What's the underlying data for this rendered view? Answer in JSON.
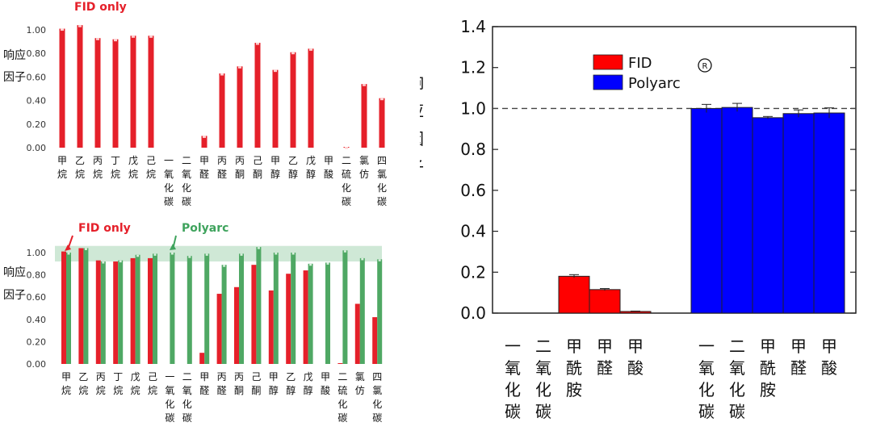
{
  "chart_data": [
    {
      "type": "bar",
      "ylabel": "响应因子",
      "annotation": "FID only",
      "ylim": [
        0,
        1.1
      ],
      "yticks": [
        "0.00",
        "0.20",
        "0.40",
        "0.60",
        "0.80",
        "1.00"
      ],
      "categories": [
        "甲烷",
        "乙烷",
        "丙烷",
        "丁烷",
        "戊烷",
        "己烷",
        "一氧化碳",
        "二氧化碳",
        "甲醛",
        "丙醛",
        "丙酮",
        "己酮",
        "甲醇",
        "乙醇",
        "戊醇",
        "甲酸",
        "二硫化碳",
        "氯仿",
        "四氯化碳"
      ],
      "series": [
        {
          "name": "FID",
          "color": "#e5202a",
          "values": [
            1.01,
            1.04,
            0.93,
            0.92,
            0.95,
            0.95,
            0.0,
            0.0,
            0.1,
            0.63,
            0.69,
            0.89,
            0.66,
            0.81,
            0.84,
            0.0,
            0.005,
            0.54,
            0.42
          ]
        }
      ]
    },
    {
      "type": "bar",
      "ylabel": "响应因子",
      "annotations": [
        "FID only",
        "Polyarc"
      ],
      "ylim": [
        0,
        1.1
      ],
      "yticks": [
        "0.00",
        "0.20",
        "0.40",
        "0.60",
        "0.80",
        "1.00"
      ],
      "categories": [
        "甲烷",
        "乙烷",
        "丙烷",
        "丁烷",
        "戊烷",
        "己烷",
        "一氧化碳",
        "二氧化碳",
        "甲醛",
        "丙醛",
        "丙酮",
        "己酮",
        "甲醇",
        "乙醇",
        "戊醇",
        "甲酸",
        "二硫化碳",
        "氯仿",
        "四氯化碳"
      ],
      "band": [
        0.92,
        1.06
      ],
      "band_color": "#cfe8d6",
      "series": [
        {
          "name": "FID only",
          "color": "#e5202a",
          "values": [
            1.01,
            1.04,
            0.93,
            0.92,
            0.95,
            0.95,
            0.0,
            0.0,
            0.1,
            0.63,
            0.69,
            0.89,
            0.66,
            0.81,
            0.84,
            0.0,
            0.005,
            0.54,
            0.42
          ]
        },
        {
          "name": "Polyarc",
          "color": "#4fa864",
          "values": [
            1.0,
            1.04,
            0.92,
            0.93,
            0.98,
            0.99,
            1.0,
            0.97,
            0.99,
            0.89,
            0.99,
            1.05,
            1.0,
            1.0,
            0.9,
            0.91,
            1.02,
            0.95,
            0.94
          ]
        }
      ]
    },
    {
      "type": "bar",
      "ylabel": "响应因子",
      "ylim": [
        0,
        1.4
      ],
      "yticks": [
        "0.0",
        "0.2",
        "0.4",
        "0.6",
        "0.8",
        "1.0",
        "1.2",
        "1.4"
      ],
      "reference_line": 1.0,
      "legend": [
        "FID",
        "Polyarc"
      ],
      "registered_mark": "®",
      "legend_position": "top-center",
      "groups": [
        {
          "series": "FID",
          "color": "#ff0000",
          "categories": [
            "一氧化碳",
            "二氧化碳",
            "甲酰胺",
            "甲醛",
            "甲酸"
          ],
          "values": [
            0.0,
            0.0,
            0.18,
            0.115,
            0.008
          ],
          "errors": [
            0.0,
            0.0,
            0.008,
            0.005,
            0.002
          ]
        },
        {
          "series": "Polyarc",
          "color": "#0000ff",
          "categories": [
            "一氧化碳",
            "二氧化碳",
            "甲酰胺",
            "甲醛",
            "甲酸"
          ],
          "values": [
            1.0,
            1.005,
            0.955,
            0.975,
            0.978
          ],
          "errors": [
            0.02,
            0.02,
            0.006,
            0.018,
            0.025
          ]
        }
      ]
    }
  ]
}
